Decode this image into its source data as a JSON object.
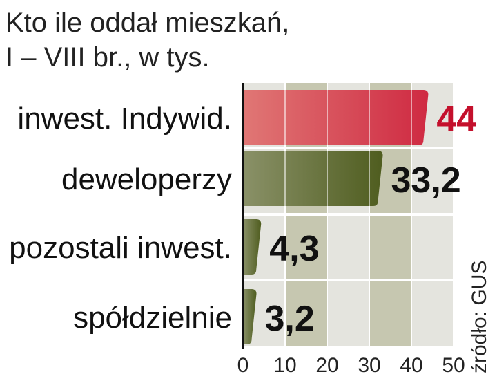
{
  "title": {
    "line1": "Kto ile oddał mieszkań,",
    "line2": "I – VIII br., w tys."
  },
  "source": "źródło: GUS",
  "colors": {
    "highlight_bar": "#d23348",
    "highlight_label": "#c4102c",
    "bar": "#5c6a2a",
    "grid_light": "#e4e4de",
    "grid_dark": "#c6c7b0",
    "axis": "#111111"
  },
  "chart_data": {
    "type": "bar",
    "orientation": "horizontal",
    "categories": [
      "inwest. Indywid.",
      "deweloperzy",
      "pozostali inwest.",
      "spółdzielnie"
    ],
    "values": [
      44,
      33.2,
      4.3,
      3.2
    ],
    "value_labels": [
      "44",
      "33,2",
      "4,3",
      "3,2"
    ],
    "highlight_index": 0,
    "xlim": [
      0,
      50
    ],
    "xticks": [
      "0",
      "10",
      "20",
      "30",
      "40",
      "50"
    ],
    "grid": true,
    "legend": "none"
  }
}
